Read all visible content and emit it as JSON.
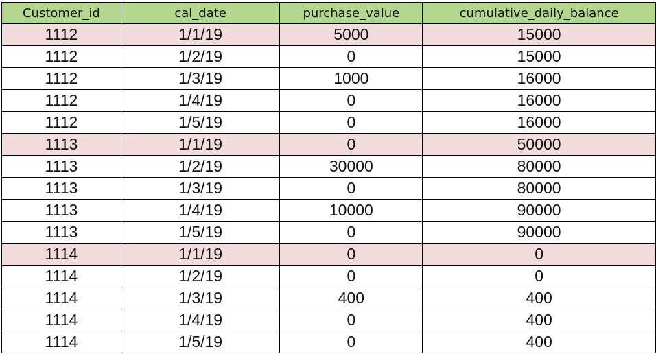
{
  "header": {
    "bg_color": "#b3d78f",
    "columns": [
      "Customer_id",
      "cal_date",
      "purchase_value",
      "cumulative_daily_balance"
    ]
  },
  "highlight_color": "#f1dcdb",
  "rows": [
    {
      "highlight": true,
      "cells": [
        "1112",
        "1/1/19",
        "5000",
        "15000"
      ]
    },
    {
      "highlight": false,
      "cells": [
        "1112",
        "1/2/19",
        "0",
        "15000"
      ]
    },
    {
      "highlight": false,
      "cells": [
        "1112",
        "1/3/19",
        "1000",
        "16000"
      ]
    },
    {
      "highlight": false,
      "cells": [
        "1112",
        "1/4/19",
        "0",
        "16000"
      ]
    },
    {
      "highlight": false,
      "cells": [
        "1112",
        "1/5/19",
        "0",
        "16000"
      ]
    },
    {
      "highlight": true,
      "cells": [
        "1113",
        "1/1/19",
        "0",
        "50000"
      ]
    },
    {
      "highlight": false,
      "cells": [
        "1113",
        "1/2/19",
        "30000",
        "80000"
      ]
    },
    {
      "highlight": false,
      "cells": [
        "1113",
        "1/3/19",
        "0",
        "80000"
      ]
    },
    {
      "highlight": false,
      "cells": [
        "1113",
        "1/4/19",
        "10000",
        "90000"
      ]
    },
    {
      "highlight": false,
      "cells": [
        "1113",
        "1/5/19",
        "0",
        "90000"
      ]
    },
    {
      "highlight": true,
      "cells": [
        "1114",
        "1/1/19",
        "0",
        "0"
      ]
    },
    {
      "highlight": false,
      "cells": [
        "1114",
        "1/2/19",
        "0",
        "0"
      ]
    },
    {
      "highlight": false,
      "cells": [
        "1114",
        "1/3/19",
        "400",
        "400"
      ]
    },
    {
      "highlight": false,
      "cells": [
        "1114",
        "1/4/19",
        "0",
        "400"
      ]
    },
    {
      "highlight": false,
      "cells": [
        "1114",
        "1/5/19",
        "0",
        "400"
      ]
    }
  ]
}
